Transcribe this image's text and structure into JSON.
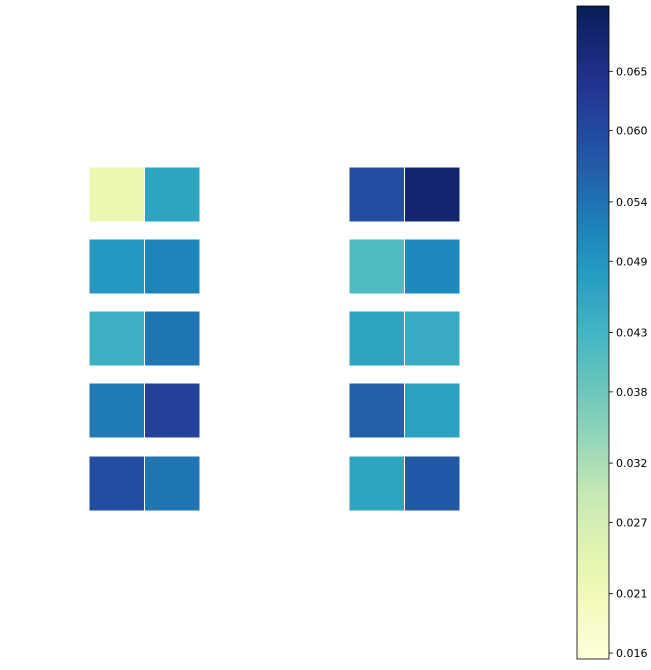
{
  "chart_data": {
    "type": "heatmap",
    "colormap": "YlGnBu",
    "colorbar": {
      "vmin": 0.0155,
      "vmax": 0.0705,
      "ticks": [
        0.016,
        0.021,
        0.027,
        0.032,
        0.038,
        0.043,
        0.049,
        0.054,
        0.06,
        0.065
      ],
      "tick_labels": [
        "0.016",
        "0.021",
        "0.027",
        "0.032",
        "0.038",
        "0.043",
        "0.049",
        "0.054",
        "0.060",
        "0.065"
      ],
      "placement": "right"
    },
    "panels": [
      {
        "rows": 5,
        "cols": 2,
        "values": [
          [
            0.0225,
            0.0465
          ],
          [
            0.0485,
            0.0515
          ],
          [
            0.044,
            0.0535
          ],
          [
            0.053,
            0.0615
          ],
          [
            0.0595,
            0.0535
          ]
        ]
      },
      {
        "rows": 5,
        "cols": 2,
        "values": [
          [
            0.0595,
            0.068
          ],
          [
            0.0415,
            0.051
          ],
          [
            0.0465,
            0.045
          ],
          [
            0.0565,
            0.047
          ],
          [
            0.0465,
            0.0575
          ]
        ]
      }
    ],
    "grid": false
  }
}
